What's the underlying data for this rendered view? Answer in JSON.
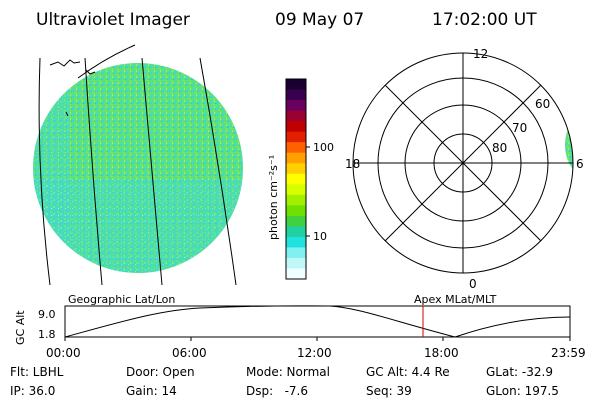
{
  "header": {
    "title": "Ultraviolet Imager",
    "date": "09 May 07",
    "time": "17:02:00 UT"
  },
  "colorbar": {
    "label": "photon cm⁻²s⁻¹",
    "ticks": [
      "100",
      "10"
    ],
    "colors_top_to_bottom": [
      "#1a0030",
      "#3a0050",
      "#6a0060",
      "#9a0030",
      "#c00000",
      "#e02000",
      "#ff6000",
      "#ffa000",
      "#ffd000",
      "#ffff00",
      "#d8ff00",
      "#a0f000",
      "#70e000",
      "#40d040",
      "#20d0a0",
      "#20e0e0",
      "#80f0f0",
      "#c0f8f8",
      "#f0ffff"
    ]
  },
  "polar": {
    "labels": [
      {
        "text": "12"
      },
      {
        "text": "18"
      },
      {
        "text": "0"
      },
      {
        "text": "60"
      },
      {
        "text": "70"
      },
      {
        "text": "80"
      },
      {
        "text": "6"
      }
    ]
  },
  "timeline": {
    "ylabel": "GC Alt",
    "ticks_y": [
      "9.0",
      "1.8"
    ],
    "left_label": "Geographic Lat/Lon",
    "right_label": "Apex MLat/MLT",
    "ticks_x": [
      "00:00",
      "06:00",
      "12:00",
      "18:00",
      "23:59"
    ],
    "marker_time": "17:02"
  },
  "info": {
    "row1": [
      {
        "label": "Flt: LBHL"
      },
      {
        "label": "Door: Open"
      },
      {
        "label": "Mode: Normal"
      },
      {
        "label": "GC Alt: 4.4 Re"
      },
      {
        "label": "GLat: -32.9"
      }
    ],
    "row2": [
      {
        "label": "IP: 36.0"
      },
      {
        "label": "Gain: 14"
      },
      {
        "label": "Dsp:   -7.6"
      },
      {
        "label": "Seq: 39"
      },
      {
        "label": "GLon: 197.5"
      }
    ]
  }
}
